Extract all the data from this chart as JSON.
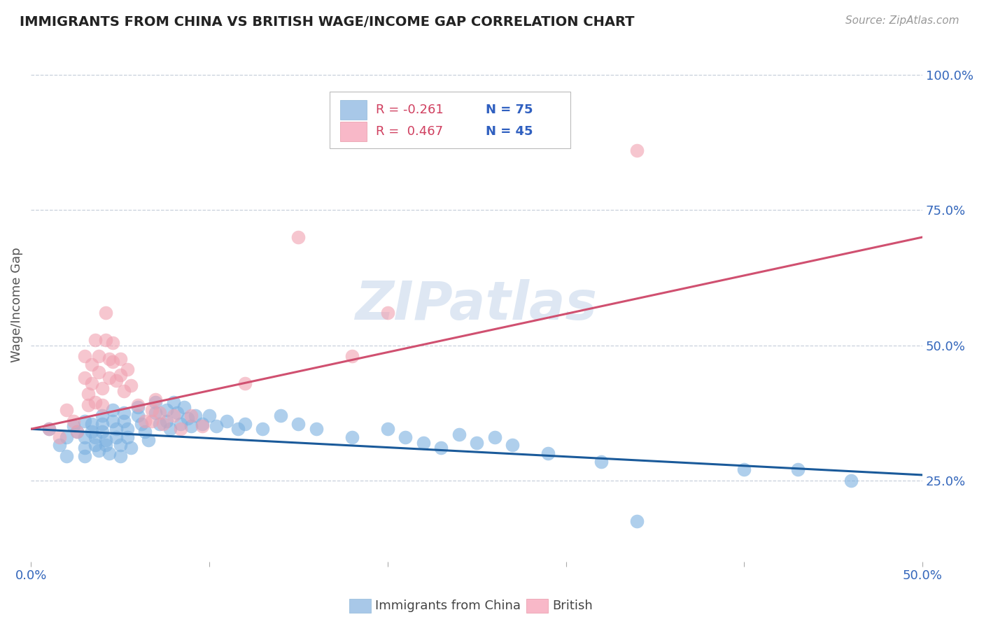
{
  "title": "IMMIGRANTS FROM CHINA VS BRITISH WAGE/INCOME GAP CORRELATION CHART",
  "source_text": "Source: ZipAtlas.com",
  "ylabel": "Wage/Income Gap",
  "blue_scatter": [
    [
      0.005,
      0.345
    ],
    [
      0.008,
      0.315
    ],
    [
      0.01,
      0.33
    ],
    [
      0.01,
      0.295
    ],
    [
      0.012,
      0.35
    ],
    [
      0.013,
      0.34
    ],
    [
      0.015,
      0.36
    ],
    [
      0.015,
      0.33
    ],
    [
      0.015,
      0.31
    ],
    [
      0.015,
      0.295
    ],
    [
      0.017,
      0.355
    ],
    [
      0.017,
      0.34
    ],
    [
      0.018,
      0.33
    ],
    [
      0.018,
      0.315
    ],
    [
      0.019,
      0.305
    ],
    [
      0.02,
      0.37
    ],
    [
      0.02,
      0.355
    ],
    [
      0.02,
      0.34
    ],
    [
      0.021,
      0.325
    ],
    [
      0.021,
      0.315
    ],
    [
      0.022,
      0.3
    ],
    [
      0.023,
      0.38
    ],
    [
      0.023,
      0.36
    ],
    [
      0.024,
      0.345
    ],
    [
      0.024,
      0.33
    ],
    [
      0.025,
      0.315
    ],
    [
      0.025,
      0.295
    ],
    [
      0.026,
      0.375
    ],
    [
      0.026,
      0.36
    ],
    [
      0.027,
      0.345
    ],
    [
      0.027,
      0.33
    ],
    [
      0.028,
      0.31
    ],
    [
      0.03,
      0.385
    ],
    [
      0.03,
      0.37
    ],
    [
      0.031,
      0.355
    ],
    [
      0.032,
      0.34
    ],
    [
      0.033,
      0.325
    ],
    [
      0.035,
      0.395
    ],
    [
      0.035,
      0.375
    ],
    [
      0.036,
      0.355
    ],
    [
      0.038,
      0.38
    ],
    [
      0.038,
      0.36
    ],
    [
      0.039,
      0.345
    ],
    [
      0.04,
      0.395
    ],
    [
      0.041,
      0.375
    ],
    [
      0.042,
      0.355
    ],
    [
      0.043,
      0.385
    ],
    [
      0.044,
      0.365
    ],
    [
      0.045,
      0.35
    ],
    [
      0.046,
      0.37
    ],
    [
      0.048,
      0.355
    ],
    [
      0.05,
      0.37
    ],
    [
      0.052,
      0.35
    ],
    [
      0.055,
      0.36
    ],
    [
      0.058,
      0.345
    ],
    [
      0.06,
      0.355
    ],
    [
      0.065,
      0.345
    ],
    [
      0.07,
      0.37
    ],
    [
      0.075,
      0.355
    ],
    [
      0.08,
      0.345
    ],
    [
      0.09,
      0.33
    ],
    [
      0.1,
      0.345
    ],
    [
      0.105,
      0.33
    ],
    [
      0.11,
      0.32
    ],
    [
      0.115,
      0.31
    ],
    [
      0.12,
      0.335
    ],
    [
      0.125,
      0.32
    ],
    [
      0.13,
      0.33
    ],
    [
      0.135,
      0.315
    ],
    [
      0.145,
      0.3
    ],
    [
      0.16,
      0.285
    ],
    [
      0.17,
      0.175
    ],
    [
      0.2,
      0.27
    ],
    [
      0.215,
      0.27
    ],
    [
      0.23,
      0.25
    ]
  ],
  "pink_scatter": [
    [
      0.005,
      0.345
    ],
    [
      0.008,
      0.33
    ],
    [
      0.01,
      0.38
    ],
    [
      0.012,
      0.36
    ],
    [
      0.013,
      0.34
    ],
    [
      0.015,
      0.48
    ],
    [
      0.015,
      0.44
    ],
    [
      0.016,
      0.41
    ],
    [
      0.016,
      0.39
    ],
    [
      0.017,
      0.465
    ],
    [
      0.017,
      0.43
    ],
    [
      0.018,
      0.395
    ],
    [
      0.018,
      0.51
    ],
    [
      0.019,
      0.48
    ],
    [
      0.019,
      0.45
    ],
    [
      0.02,
      0.42
    ],
    [
      0.02,
      0.39
    ],
    [
      0.021,
      0.56
    ],
    [
      0.021,
      0.51
    ],
    [
      0.022,
      0.475
    ],
    [
      0.022,
      0.44
    ],
    [
      0.023,
      0.505
    ],
    [
      0.023,
      0.47
    ],
    [
      0.024,
      0.435
    ],
    [
      0.025,
      0.475
    ],
    [
      0.025,
      0.445
    ],
    [
      0.026,
      0.415
    ],
    [
      0.027,
      0.455
    ],
    [
      0.028,
      0.425
    ],
    [
      0.03,
      0.39
    ],
    [
      0.032,
      0.36
    ],
    [
      0.034,
      0.38
    ],
    [
      0.034,
      0.36
    ],
    [
      0.035,
      0.4
    ],
    [
      0.036,
      0.375
    ],
    [
      0.037,
      0.355
    ],
    [
      0.04,
      0.37
    ],
    [
      0.042,
      0.345
    ],
    [
      0.045,
      0.37
    ],
    [
      0.048,
      0.35
    ],
    [
      0.06,
      0.43
    ],
    [
      0.075,
      0.7
    ],
    [
      0.09,
      0.48
    ],
    [
      0.1,
      0.56
    ],
    [
      0.17,
      0.86
    ]
  ],
  "blue_line": {
    "x": [
      0.0,
      0.25
    ],
    "y": [
      0.345,
      0.26
    ]
  },
  "pink_line": {
    "x": [
      0.0,
      0.25
    ],
    "y": [
      0.345,
      0.7
    ]
  },
  "blue_color": "#7ab0e0",
  "pink_color": "#f0a0b0",
  "blue_line_color": "#1a5a9a",
  "pink_line_color": "#d05070",
  "background_color": "#ffffff",
  "watermark": "ZIPatlas",
  "xlim": [
    0.0,
    0.25
  ],
  "ylim": [
    0.1,
    1.05
  ],
  "y_ticks": [
    0.25,
    0.5,
    0.75,
    1.0
  ],
  "y_tick_labels": [
    "25.0%",
    "50.0%",
    "75.0%",
    "100.0%"
  ],
  "x_ticks": [
    0.0,
    0.05,
    0.1,
    0.15,
    0.2,
    0.25
  ],
  "x_tick_labels": [
    "0.0%",
    "",
    "",
    "",
    "",
    "50.0%"
  ],
  "legend_blue_label_r": "R = -0.261",
  "legend_blue_label_n": "N = 75",
  "legend_pink_label_r": "R =  0.467",
  "legend_pink_label_n": "N = 45",
  "bottom_legend_blue": "Immigrants from China",
  "bottom_legend_pink": "British"
}
